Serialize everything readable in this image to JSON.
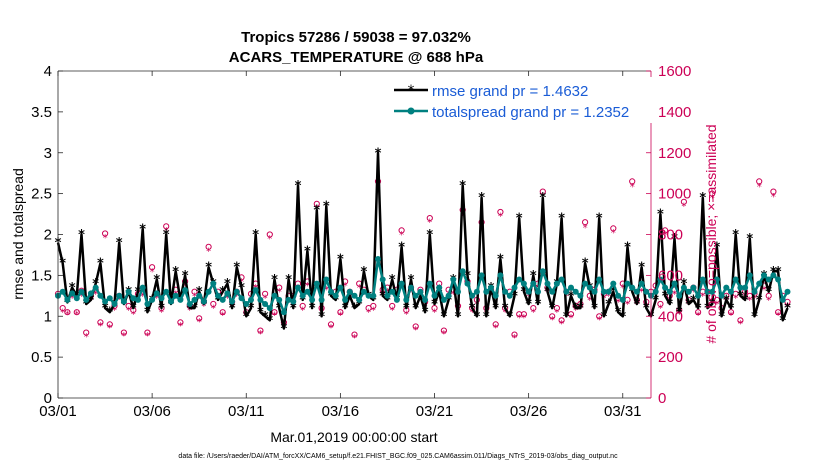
{
  "chart_data": {
    "type": "line",
    "title": "Tropics 57286 / 59038 = 97.032%",
    "subtitle": "ACARS_TEMPERATURE @ 688 hPa",
    "xlabel": "Mar.01,2019 00:00:00 start",
    "ylabel_left": "rmse and totalspread",
    "ylabel_right": "# of obs: o=possible; ×=assimilated",
    "footer": "data file: /Users/raeder/DAI/ATM_forcXX/CAM6_setup/f.e21.FHIST_BGC.f09_025.CAM6assim.011/Diags_NTrS_2019-03/obs_diag_output.nc",
    "xlim": [
      0,
      31.5
    ],
    "ylim_left": [
      0,
      4
    ],
    "ylim_right": [
      0,
      1600
    ],
    "x_ticks": [
      0,
      5,
      10,
      15,
      20,
      25,
      30
    ],
    "x_tick_labels": [
      "03/01",
      "03/06",
      "03/11",
      "03/16",
      "03/21",
      "03/26",
      "03/31"
    ],
    "y_left_ticks": [
      "0",
      "0.5",
      "1",
      "1.5",
      "2",
      "2.5",
      "3",
      "3.5",
      "4"
    ],
    "y_left_tick_values": [
      0,
      0.5,
      1,
      1.5,
      2,
      2.5,
      3,
      3.5,
      4
    ],
    "y_right_ticks": [
      "0",
      "200",
      "400",
      "600",
      "800",
      "1000",
      "1200",
      "1400",
      "1600"
    ],
    "y_right_tick_values": [
      0,
      200,
      400,
      600,
      800,
      1000,
      1200,
      1400,
      1600
    ],
    "x_step_days": 0.25,
    "legend_position": "top-right",
    "colors": {
      "rmse": "#000000",
      "spread": "#008080",
      "obs": "#cc0055",
      "legend_text": "#1a5cd6"
    },
    "series": [
      {
        "name": "rmse grand pr = 1.4632",
        "values": [
          1.9,
          1.65,
          1.17,
          1.35,
          1.25,
          2.0,
          1.15,
          1.2,
          1.4,
          1.65,
          1.1,
          1.05,
          1.15,
          1.9,
          1.15,
          1.3,
          1.1,
          1.3,
          2.07,
          1.05,
          1.2,
          1.45,
          1.1,
          2.0,
          1.15,
          1.55,
          1.2,
          1.5,
          1.1,
          1.1,
          1.3,
          1.15,
          1.6,
          1.4,
          1.2,
          1.3,
          1.4,
          1.1,
          1.6,
          1.35,
          1.0,
          1.1,
          2.0,
          1.05,
          1.0,
          0.95,
          1.45,
          1.1,
          0.85,
          1.45,
          1.1,
          2.6,
          1.2,
          1.8,
          1.1,
          2.3,
          1.0,
          2.35,
          1.25,
          1.2,
          1.7,
          1.1,
          1.25,
          1.1,
          1.15,
          1.55,
          1.25,
          1.2,
          3.0,
          1.25,
          1.2,
          1.45,
          1.2,
          1.85,
          1.1,
          1.45,
          1.1,
          1.25,
          1.05,
          2.0,
          1.15,
          1.3,
          1.0,
          1.2,
          1.45,
          1.0,
          2.6,
          1.5,
          1.1,
          1.0,
          2.45,
          1.0,
          1.35,
          1.1,
          1.7,
          1.1,
          1.0,
          1.25,
          2.2,
          1.3,
          1.15,
          1.5,
          1.15,
          2.45,
          1.3,
          1.1,
          1.4,
          2.2,
          1.0,
          1.25,
          1.1,
          1.1,
          1.65,
          1.35,
          1.1,
          2.2,
          1.0,
          1.15,
          1.3,
          1.05,
          1.0,
          1.85,
          1.3,
          1.15,
          1.6,
          1.1,
          1.0,
          1.2,
          2.25,
          1.25,
          1.15,
          1.95,
          1.05,
          1.4,
          1.15,
          1.2,
          1.1,
          2.45,
          1.1,
          1.15,
          1.85,
          1.0,
          1.2,
          1.1,
          2.0,
          1.25,
          1.2,
          1.95,
          1.0,
          1.2,
          1.5,
          1.3,
          1.55,
          1.55,
          0.95,
          1.1
        ]
      },
      {
        "name": "totalspread grand pr = 1.2352",
        "values": [
          1.25,
          1.3,
          1.2,
          1.28,
          1.22,
          1.3,
          1.2,
          1.28,
          1.35,
          1.25,
          1.18,
          1.22,
          1.15,
          1.25,
          1.18,
          1.3,
          1.22,
          1.2,
          1.35,
          1.15,
          1.2,
          1.28,
          1.22,
          1.3,
          1.18,
          1.25,
          1.2,
          1.32,
          1.15,
          1.2,
          1.25,
          1.18,
          1.3,
          1.4,
          1.25,
          1.2,
          1.28,
          1.18,
          1.3,
          1.22,
          1.15,
          1.2,
          1.32,
          1.2,
          1.15,
          1.1,
          1.25,
          1.2,
          1.05,
          1.2,
          1.18,
          1.35,
          1.25,
          1.3,
          1.2,
          1.4,
          1.2,
          1.45,
          1.3,
          1.25,
          1.35,
          1.2,
          1.3,
          1.25,
          1.2,
          1.3,
          1.25,
          1.25,
          1.7,
          1.45,
          1.25,
          1.3,
          1.2,
          1.4,
          1.2,
          1.35,
          1.25,
          1.3,
          1.2,
          1.4,
          1.25,
          1.35,
          1.2,
          1.25,
          1.45,
          1.3,
          1.55,
          1.4,
          1.25,
          1.3,
          1.5,
          1.3,
          1.35,
          1.25,
          1.5,
          1.3,
          1.25,
          1.35,
          1.45,
          1.4,
          1.3,
          1.4,
          1.3,
          1.55,
          1.4,
          1.3,
          1.4,
          1.45,
          1.3,
          1.35,
          1.3,
          1.25,
          1.4,
          1.35,
          1.3,
          1.45,
          1.3,
          1.3,
          1.4,
          1.25,
          1.2,
          1.4,
          1.35,
          1.3,
          1.4,
          1.3,
          1.25,
          1.3,
          1.45,
          1.35,
          1.3,
          1.4,
          1.25,
          1.35,
          1.3,
          1.35,
          1.25,
          1.45,
          1.3,
          1.3,
          1.45,
          1.25,
          1.35,
          1.3,
          1.45,
          1.35,
          1.35,
          1.5,
          1.3,
          1.4,
          1.5,
          1.45,
          1.5,
          1.45,
          1.2,
          1.3
        ]
      }
    ],
    "obs_possible": [
      510,
      440,
      420,
      510,
      420,
      525,
      320,
      500,
      530,
      370,
      805,
      360,
      450,
      500,
      320,
      450,
      430,
      510,
      520,
      320,
      640,
      510,
      440,
      840,
      500,
      530,
      370,
      570,
      450,
      520,
      390,
      470,
      740,
      460,
      520,
      420,
      510,
      470,
      520,
      590,
      420,
      510,
      560,
      330,
      510,
      800,
      420,
      540,
      370,
      500,
      500,
      560,
      450,
      570,
      510,
      950,
      440,
      550,
      360,
      520,
      420,
      570,
      520,
      310,
      560,
      530,
      440,
      450,
      1060,
      530,
      540,
      450,
      530,
      820,
      430,
      540,
      350,
      530,
      470,
      880,
      440,
      560,
      330,
      530,
      530,
      450,
      920,
      570,
      440,
      480,
      860,
      440,
      530,
      360,
      910,
      440,
      520,
      310,
      410,
      410,
      520,
      440,
      560,
      1010,
      540,
      400,
      440,
      380,
      520,
      410,
      450,
      460,
      860,
      500,
      530,
      400,
      510,
      520,
      830,
      490,
      560,
      480,
      1060,
      480,
      540,
      470,
      520,
      550,
      460,
      820,
      500,
      530,
      430,
      960,
      480,
      540,
      420,
      520,
      520,
      1000,
      480,
      440,
      500,
      420,
      510,
      380,
      520,
      500,
      510,
      1060,
      550,
      500,
      1010,
      420,
      500,
      470
    ],
    "obs_assimilated": [
      490,
      420,
      410,
      490,
      410,
      500,
      300,
      480,
      510,
      355,
      785,
      345,
      430,
      485,
      305,
      430,
      410,
      490,
      500,
      305,
      620,
      490,
      420,
      820,
      485,
      510,
      355,
      550,
      430,
      500,
      375,
      450,
      720,
      440,
      500,
      405,
      490,
      450,
      500,
      570,
      405,
      490,
      540,
      315,
      490,
      780,
      405,
      520,
      355,
      480,
      480,
      540,
      430,
      550,
      490,
      925,
      425,
      530,
      345,
      500,
      405,
      550,
      500,
      295,
      540,
      510,
      420,
      430,
      1030,
      510,
      520,
      430,
      510,
      800,
      410,
      520,
      335,
      510,
      450,
      860,
      420,
      540,
      315,
      510,
      510,
      430,
      895,
      550,
      420,
      460,
      840,
      420,
      510,
      345,
      890,
      420,
      500,
      295,
      395,
      395,
      500,
      420,
      540,
      985,
      520,
      385,
      420,
      365,
      500,
      395,
      430,
      440,
      835,
      480,
      510,
      385,
      490,
      500,
      810,
      470,
      540,
      460,
      1035,
      460,
      520,
      450,
      500,
      530,
      440,
      800,
      480,
      510,
      410,
      940,
      460,
      520,
      405,
      500,
      500,
      980,
      460,
      420,
      480,
      405,
      490,
      365,
      500,
      480,
      490,
      1035,
      530,
      480,
      985,
      405,
      480,
      450
    ]
  }
}
